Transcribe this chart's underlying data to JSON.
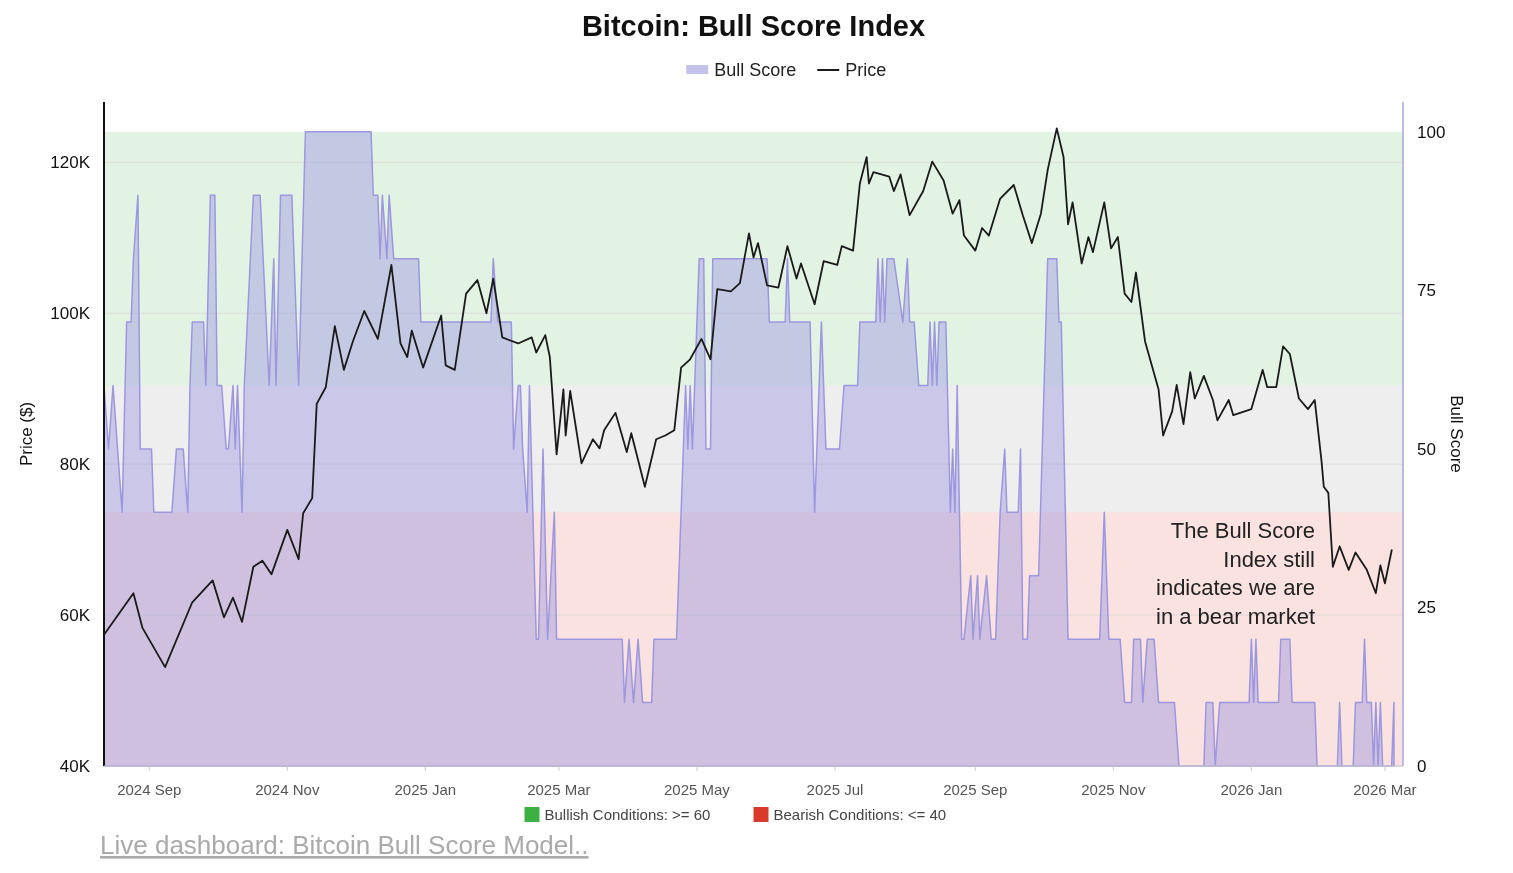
{
  "chart_data": {
    "type": "line",
    "title": "Bitcoin: Bull Score Index",
    "ylabel": "Price ($)",
    "y2label": "Bull Score",
    "legend": "top",
    "grid": "y",
    "xlim": [
      "2024-08-12",
      "2026-03-09"
    ],
    "xticks": [
      {
        "value": "2024-09-01",
        "label": "2024 Sep"
      },
      {
        "value": "2024-11-01",
        "label": "2024 Nov"
      },
      {
        "value": "2025-01-01",
        "label": "2025 Jan"
      },
      {
        "value": "2025-03-01",
        "label": "2025 Mar"
      },
      {
        "value": "2025-05-01",
        "label": "2025 May"
      },
      {
        "value": "2025-07-01",
        "label": "2025 Jul"
      },
      {
        "value": "2025-09-01",
        "label": "2025 Sep"
      },
      {
        "value": "2025-11-01",
        "label": "2025 Nov"
      },
      {
        "value": "2026-01-01",
        "label": "2026 Jan"
      },
      {
        "value": "2026-03-01",
        "label": "2026 Mar"
      }
    ],
    "ylim": [
      40000,
      128000
    ],
    "yticks": [
      {
        "value": 40000,
        "label": "40K"
      },
      {
        "value": 60000,
        "label": "60K"
      },
      {
        "value": 80000,
        "label": "80K"
      },
      {
        "value": 100000,
        "label": "100K"
      },
      {
        "value": 120000,
        "label": "120K"
      }
    ],
    "y2lim": [
      0,
      104.7
    ],
    "y2ticks": [
      0,
      25,
      50,
      75,
      100
    ],
    "bands": [
      {
        "axis": "y2",
        "from": 60,
        "to": 100,
        "color": "#3cb043"
      },
      {
        "axis": "y2",
        "from": 40,
        "to": 60,
        "color": "#8c8c8c"
      },
      {
        "axis": "y2",
        "from": 0,
        "to": 40,
        "color": "#d93a2b"
      }
    ],
    "annotations": [
      "The Bull Score\nIndex still\nindicates we are\nin a bear market",
      "Live dashboard: Bitcoin Bull Score Model..",
      "Bullish Conditions: >= 60",
      "Bearish Conditions: <= 40"
    ],
    "series": [
      {
        "name": "Bull Score",
        "type": "area",
        "axis": "y2",
        "color": "#9d97e0",
        "x": [
          "2024-08-12",
          "2024-08-14",
          "2024-08-16",
          "2024-08-18",
          "2024-08-20",
          "2024-08-22",
          "2024-08-24",
          "2024-08-25",
          "2024-08-27",
          "2024-08-28",
          "2024-09-02",
          "2024-09-03",
          "2024-09-11",
          "2024-09-13",
          "2024-09-16",
          "2024-09-18",
          "2024-09-19",
          "2024-09-20",
          "2024-09-25",
          "2024-09-26",
          "2024-09-28",
          "2024-09-30",
          "2024-10-01",
          "2024-10-03",
          "2024-10-05",
          "2024-10-06",
          "2024-10-08",
          "2024-10-09",
          "2024-10-10",
          "2024-10-12",
          "2024-10-13",
          "2024-10-17",
          "2024-10-20",
          "2024-10-24",
          "2024-10-26",
          "2024-10-27",
          "2024-10-29",
          "2024-11-03",
          "2024-11-06",
          "2024-11-09",
          "2024-12-08",
          "2024-12-09",
          "2024-12-11",
          "2024-12-12",
          "2024-12-13",
          "2024-12-15",
          "2024-12-16",
          "2024-12-18",
          "2024-12-29",
          "2024-12-30",
          "2025-01-30",
          "2025-01-31",
          "2025-02-02",
          "2025-02-08",
          "2025-02-09",
          "2025-02-11",
          "2025-02-12",
          "2025-02-13",
          "2025-02-15",
          "2025-02-16",
          "2025-02-19",
          "2025-02-20",
          "2025-02-22",
          "2025-02-24",
          "2025-02-27",
          "2025-02-28",
          "2025-03-29",
          "2025-03-30",
          "2025-04-01",
          "2025-04-03",
          "2025-04-05",
          "2025-04-07",
          "2025-04-11",
          "2025-04-12",
          "2025-04-22",
          "2025-04-26",
          "2025-04-27",
          "2025-04-28",
          "2025-04-29",
          "2025-05-02",
          "2025-05-04",
          "2025-05-05",
          "2025-05-07",
          "2025-05-08",
          "2025-06-01",
          "2025-06-02",
          "2025-06-09",
          "2025-06-10",
          "2025-06-11",
          "2025-06-20",
          "2025-06-22",
          "2025-06-25",
          "2025-06-27",
          "2025-07-03",
          "2025-07-05",
          "2025-07-11",
          "2025-07-12",
          "2025-07-19",
          "2025-07-20",
          "2025-07-21",
          "2025-07-22",
          "2025-07-23",
          "2025-07-24",
          "2025-07-27",
          "2025-07-31",
          "2025-08-02",
          "2025-08-03",
          "2025-08-05",
          "2025-08-07",
          "2025-08-11",
          "2025-08-12",
          "2025-08-13",
          "2025-08-14",
          "2025-08-15",
          "2025-08-16",
          "2025-08-19",
          "2025-08-21",
          "2025-08-22",
          "2025-08-23",
          "2025-08-24",
          "2025-08-26",
          "2025-08-27",
          "2025-08-30",
          "2025-08-31",
          "2025-09-02",
          "2025-09-03",
          "2025-09-06",
          "2025-09-08",
          "2025-09-10",
          "2025-09-12",
          "2025-09-14",
          "2025-09-15",
          "2025-09-20",
          "2025-09-21",
          "2025-09-22",
          "2025-09-24",
          "2025-09-25",
          "2025-09-29",
          "2025-10-03",
          "2025-10-07",
          "2025-10-08",
          "2025-10-09",
          "2025-10-12",
          "2025-10-26",
          "2025-10-28",
          "2025-10-30",
          "2025-11-04",
          "2025-11-06",
          "2025-11-09",
          "2025-11-10",
          "2025-11-13",
          "2025-11-14",
          "2025-11-16",
          "2025-11-19",
          "2025-11-21",
          "2025-11-28",
          "2025-11-30",
          "2025-12-11",
          "2025-12-12",
          "2025-12-15",
          "2025-12-16",
          "2025-12-18",
          "2025-12-31",
          "2026-01-01",
          "2026-01-02",
          "2026-01-03",
          "2026-01-04",
          "2026-01-13",
          "2026-01-14",
          "2026-01-18",
          "2026-01-19",
          "2026-01-29",
          "2026-01-30",
          "2026-02-08",
          "2026-02-09",
          "2026-02-10",
          "2026-02-15",
          "2026-02-16",
          "2026-02-19",
          "2026-02-20",
          "2026-02-21",
          "2026-02-23",
          "2026-02-24",
          "2026-02-25",
          "2026-02-26",
          "2026-02-27",
          "2026-02-28",
          "2026-03-04",
          "2026-03-05"
        ],
        "values": [
          60,
          50,
          60,
          50,
          40,
          70,
          70,
          80,
          90,
          50,
          50,
          40,
          40,
          50,
          50,
          40,
          60,
          70,
          70,
          60,
          90,
          90,
          60,
          60,
          50,
          50,
          60,
          50,
          60,
          40,
          60,
          90,
          90,
          60,
          80,
          60,
          90,
          90,
          60,
          100,
          100,
          90,
          90,
          80,
          90,
          80,
          90,
          80,
          80,
          70,
          70,
          80,
          70,
          70,
          50,
          60,
          60,
          50,
          40,
          60,
          20,
          20,
          50,
          20,
          40,
          20,
          20,
          10,
          20,
          10,
          20,
          10,
          10,
          20,
          20,
          60,
          50,
          60,
          50,
          80,
          80,
          50,
          50,
          80,
          80,
          70,
          70,
          80,
          70,
          70,
          40,
          70,
          50,
          50,
          60,
          60,
          70,
          70,
          80,
          70,
          80,
          70,
          80,
          80,
          70,
          80,
          70,
          70,
          60,
          60,
          70,
          60,
          70,
          60,
          70,
          70,
          40,
          50,
          40,
          60,
          20,
          20,
          30,
          20,
          30,
          20,
          30,
          20,
          20,
          40,
          50,
          40,
          40,
          50,
          20,
          20,
          30,
          30,
          80,
          80,
          70,
          70,
          20,
          20,
          40,
          20,
          20,
          10,
          10,
          20,
          20,
          10,
          20,
          20,
          10,
          10,
          0,
          0,
          10,
          10,
          0,
          10,
          10,
          20,
          10,
          20,
          10,
          10,
          20,
          20,
          10,
          10,
          0,
          0,
          10,
          0,
          0,
          10,
          10,
          20,
          10,
          10,
          0,
          10,
          0,
          10,
          0,
          0,
          10
        ]
      },
      {
        "name": "Price",
        "type": "line",
        "axis": "y",
        "color": "#1a1a1a",
        "x": [
          "2024-08-12",
          "2024-08-25",
          "2024-08-29",
          "2024-09-08",
          "2024-09-20",
          "2024-09-29",
          "2024-10-04",
          "2024-10-08",
          "2024-10-12",
          "2024-10-17",
          "2024-10-21",
          "2024-10-25",
          "2024-11-01",
          "2024-11-06",
          "2024-11-08",
          "2024-11-12",
          "2024-11-14",
          "2024-11-18",
          "2024-11-22",
          "2024-11-26",
          "2024-11-30",
          "2024-12-05",
          "2024-12-11",
          "2024-12-17",
          "2024-12-21",
          "2024-12-24",
          "2024-12-26",
          "2024-12-31",
          "2025-01-08",
          "2025-01-10",
          "2025-01-14",
          "2025-01-19",
          "2025-01-24",
          "2025-01-28",
          "2025-01-31",
          "2025-02-04",
          "2025-02-11",
          "2025-02-17",
          "2025-02-19",
          "2025-02-23",
          "2025-02-25",
          "2025-02-28",
          "2025-03-03",
          "2025-03-04",
          "2025-03-06",
          "2025-03-11",
          "2025-03-16",
          "2025-03-19",
          "2025-03-21",
          "2025-03-26",
          "2025-03-31",
          "2025-04-02",
          "2025-04-08",
          "2025-04-13",
          "2025-04-17",
          "2025-04-21",
          "2025-04-24",
          "2025-04-28",
          "2025-05-03",
          "2025-05-07",
          "2025-05-10",
          "2025-05-16",
          "2025-05-20",
          "2025-05-24",
          "2025-05-26",
          "2025-05-28",
          "2025-06-01",
          "2025-06-06",
          "2025-06-10",
          "2025-06-14",
          "2025-06-16",
          "2025-06-22",
          "2025-06-26",
          "2025-07-02",
          "2025-07-04",
          "2025-07-09",
          "2025-07-12",
          "2025-07-15",
          "2025-07-16",
          "2025-07-18",
          "2025-07-25",
          "2025-07-27",
          "2025-07-30",
          "2025-08-03",
          "2025-08-09",
          "2025-08-13",
          "2025-08-18",
          "2025-08-22",
          "2025-08-25",
          "2025-08-27",
          "2025-09-01",
          "2025-09-04",
          "2025-09-07",
          "2025-09-12",
          "2025-09-18",
          "2025-09-22",
          "2025-09-26",
          "2025-09-30",
          "2025-10-03",
          "2025-10-07",
          "2025-10-10",
          "2025-10-12",
          "2025-10-14",
          "2025-10-18",
          "2025-10-21",
          "2025-10-23",
          "2025-10-28",
          "2025-10-31",
          "2025-11-03",
          "2025-11-06",
          "2025-11-09",
          "2025-11-11",
          "2025-11-15",
          "2025-11-21",
          "2025-11-23",
          "2025-11-27",
          "2025-11-29",
          "2025-12-02",
          "2025-12-05",
          "2025-12-07",
          "2025-12-11",
          "2025-12-15",
          "2025-12-17",
          "2025-12-22",
          "2025-12-24",
          "2026-01-01",
          "2026-01-06",
          "2026-01-08",
          "2026-01-12",
          "2026-01-15",
          "2026-01-18",
          "2026-01-22",
          "2026-01-26",
          "2026-01-29",
          "2026-02-01",
          "2026-02-02",
          "2026-02-04",
          "2026-02-06",
          "2026-02-09",
          "2026-02-13",
          "2026-02-16",
          "2026-02-21",
          "2026-02-25",
          "2026-02-27",
          "2026-03-01",
          "2026-03-04"
        ],
        "values": [
          57400,
          62900,
          58300,
          53100,
          61700,
          64600,
          59700,
          62300,
          59100,
          66400,
          67200,
          65400,
          71300,
          67400,
          73500,
          75500,
          88000,
          90200,
          98300,
          92500,
          96300,
          100300,
          96600,
          106400,
          96000,
          94200,
          97700,
          92800,
          99700,
          93100,
          92500,
          102600,
          104400,
          100000,
          104600,
          96800,
          96000,
          96800,
          94800,
          97100,
          94200,
          81300,
          89900,
          83800,
          89700,
          80100,
          83300,
          82100,
          84500,
          86800,
          81600,
          84100,
          77000,
          83300,
          83800,
          84500,
          92800,
          93900,
          96600,
          93900,
          103200,
          102900,
          104000,
          110600,
          107400,
          109300,
          103700,
          103400,
          108900,
          104600,
          106600,
          101200,
          106900,
          106400,
          108900,
          108300,
          117200,
          120700,
          117200,
          118700,
          118100,
          116200,
          118400,
          113000,
          116200,
          120100,
          117600,
          113200,
          115000,
          110300,
          108300,
          111300,
          110300,
          115200,
          117000,
          113000,
          109300,
          113200,
          119000,
          124500,
          120700,
          111800,
          114700,
          106600,
          110100,
          108100,
          114700,
          108600,
          110100,
          102600,
          101500,
          105400,
          96300,
          89900,
          83800,
          87000,
          90500,
          85300,
          92200,
          88700,
          91700,
          88500,
          85800,
          88500,
          86500,
          87300,
          92500,
          90200,
          90200,
          95600,
          94600,
          88700,
          87300,
          88500,
          80400,
          77000,
          76200,
          66400,
          69100,
          66000,
          68300,
          66000,
          62900,
          66600,
          64200,
          68600
        ]
      }
    ]
  }
}
